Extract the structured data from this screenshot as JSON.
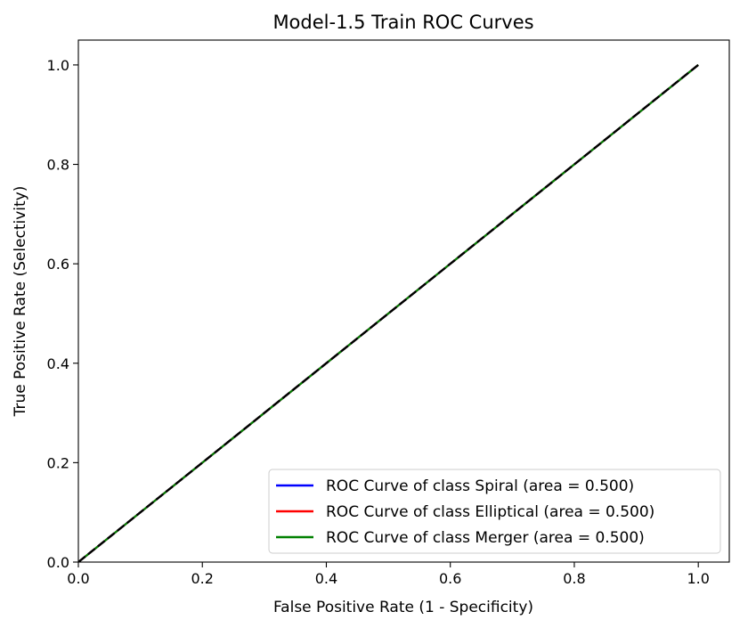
{
  "chart_data": {
    "type": "line",
    "title": "Model-1.5 Train ROC Curves",
    "xlabel": "False Positive Rate (1 - Specificity)",
    "ylabel": "True Positive Rate (Selectivity)",
    "xlim": [
      0.0,
      1.05
    ],
    "ylim": [
      0.0,
      1.05
    ],
    "x_ticks": [
      0.0,
      0.2,
      0.4,
      0.6,
      0.8,
      1.0
    ],
    "y_ticks": [
      0.0,
      0.2,
      0.4,
      0.6,
      0.8,
      1.0
    ],
    "x_tick_labels": [
      "0.0",
      "0.2",
      "0.4",
      "0.6",
      "0.8",
      "1.0"
    ],
    "y_tick_labels": [
      "0.0",
      "0.2",
      "0.4",
      "0.6",
      "0.8",
      "1.0"
    ],
    "grid": false,
    "legend_position": "lower-right",
    "series": [
      {
        "name": "ROC Curve of class Spiral (area = 0.500)",
        "color": "#0000ff",
        "x": [
          0.0,
          1.0
        ],
        "y": [
          0.0,
          1.0
        ]
      },
      {
        "name": "ROC Curve of class Elliptical (area = 0.500)",
        "color": "#ff0000",
        "x": [
          0.0,
          1.0
        ],
        "y": [
          0.0,
          1.0
        ]
      },
      {
        "name": "ROC Curve of class Merger (area = 0.500)",
        "color": "#008000",
        "x": [
          0.0,
          1.0
        ],
        "y": [
          0.0,
          1.0
        ]
      }
    ],
    "reference_line": {
      "color": "#000000",
      "style": "dashed",
      "x": [
        0.0,
        1.0
      ],
      "y": [
        0.0,
        1.0
      ]
    }
  }
}
